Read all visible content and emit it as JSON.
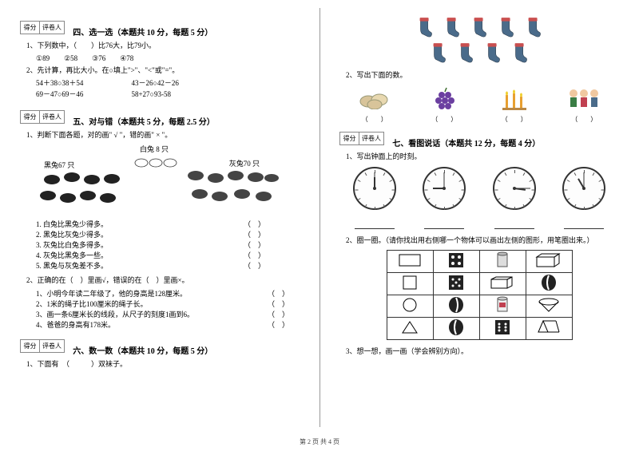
{
  "scorebox": {
    "score": "得分",
    "grader": "评卷人"
  },
  "sec4": {
    "title": "四、选一选（本题共 10 分，每题 5 分）",
    "q1": "1、下列数中，（　　）比76大，比79小。",
    "q1opts": "①89　　②58　　③76　　④78",
    "q2": "2、先计算，再比大小。在○填上\">\"、\"<\"或\"=\"。",
    "q2a": "54＋38○38＋54",
    "q2b": "43－26○42－26",
    "q2c": "69－47○69－46",
    "q2d": "58+27○93-58"
  },
  "sec5": {
    "title": "五、对与错（本题共 5 分，每题 2.5 分）",
    "q1": "1、判断下面各题，对的画\" √ \"，错的画\" × \"。",
    "label_white": "白兔 8 只",
    "label_black": "黑兔67 只",
    "label_gray": "灰兔70 只",
    "s1": "1. 白兔比黑兔少得多。",
    "s2": "2. 黑兔比灰兔少得多。",
    "s3": "3. 灰兔比白兔多得多。",
    "s4": "4. 灰兔比黑兔多一些。",
    "s5": "5. 黑兔与灰兔差不多。",
    "q2": "2、正确的在（　）里画√，错误的在（　）里画×。",
    "q2a": "1、小明今年读二年级了，他的身高是128厘米。",
    "q2b": "2、1米的绳子比100厘米的绳子长。",
    "q2c": "3、画一条6厘米长的线段，从尺子的刻度1画到6。",
    "q2d": "4、爸爸的身高有178米。"
  },
  "sec6": {
    "title": "六、数一数（本题共 10 分，每题 5 分）",
    "q1": "1、下面有　（　　　）双袜子。",
    "q2": "2、写出下面的数。"
  },
  "sec7": {
    "title": "七、看图说话（本题共 12 分，每题 4 分）",
    "q1": "1、写出钟面上的时刻。",
    "q2": "2、圈一圈。（请你找出用右侧哪一个物体可以画出左侧的图形，用笔圈出来。）",
    "q3": "3、想一想，画一画（学会辨别方向）。"
  },
  "clocks": {
    "hours": [
      12,
      9,
      3,
      11
    ],
    "mins": [
      0,
      0,
      15,
      0
    ]
  },
  "footer": "第 2 页 共 4 页",
  "paren": "（　　）",
  "paren_sm": "（　）",
  "colors": {
    "sock_body": "#4a6b8a",
    "sock_top": "#c94f4f",
    "grape": "#6b3fa0",
    "bread": "#d8c49a",
    "candle": "#e8a030",
    "people1": "#3a7d44",
    "people2": "#c04050"
  }
}
